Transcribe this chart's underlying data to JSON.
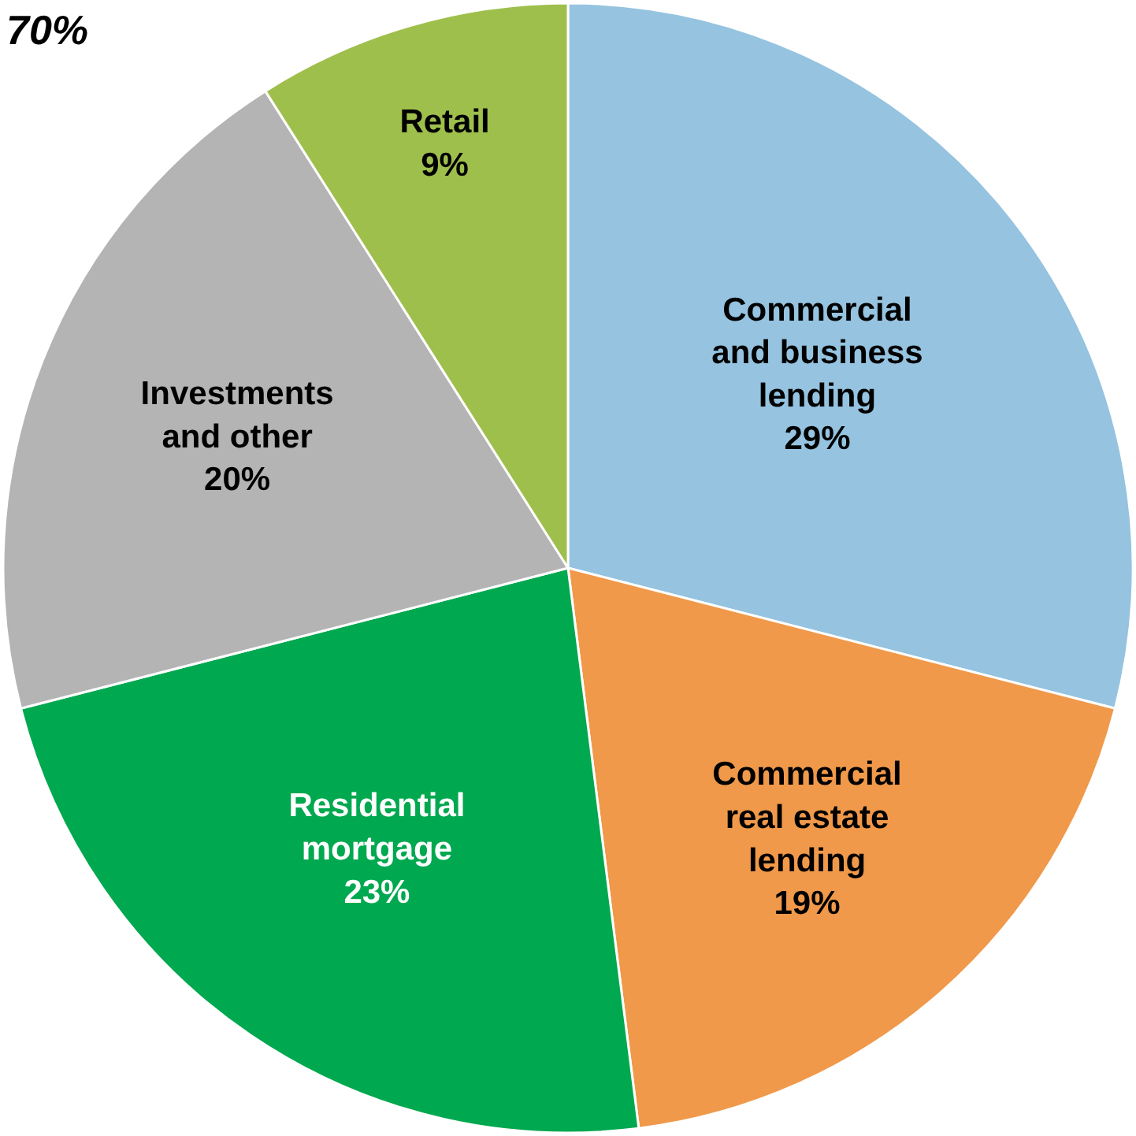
{
  "chart_data": {
    "type": "pie",
    "categories": [
      "Commercial and business lending",
      "Commercial real estate lending",
      "Residential mortgage",
      "Investments and other",
      "Retail"
    ],
    "values": [
      29,
      19,
      23,
      20,
      9
    ],
    "value_labels": [
      "29%",
      "19%",
      "23%",
      "20%",
      "9%"
    ],
    "colors": [
      "#95c3e0",
      "#f0994a",
      "#00a84f",
      "#b4b4b4",
      "#9fbf4c"
    ],
    "annotations": [
      "70%"
    ],
    "legend": false
  }
}
